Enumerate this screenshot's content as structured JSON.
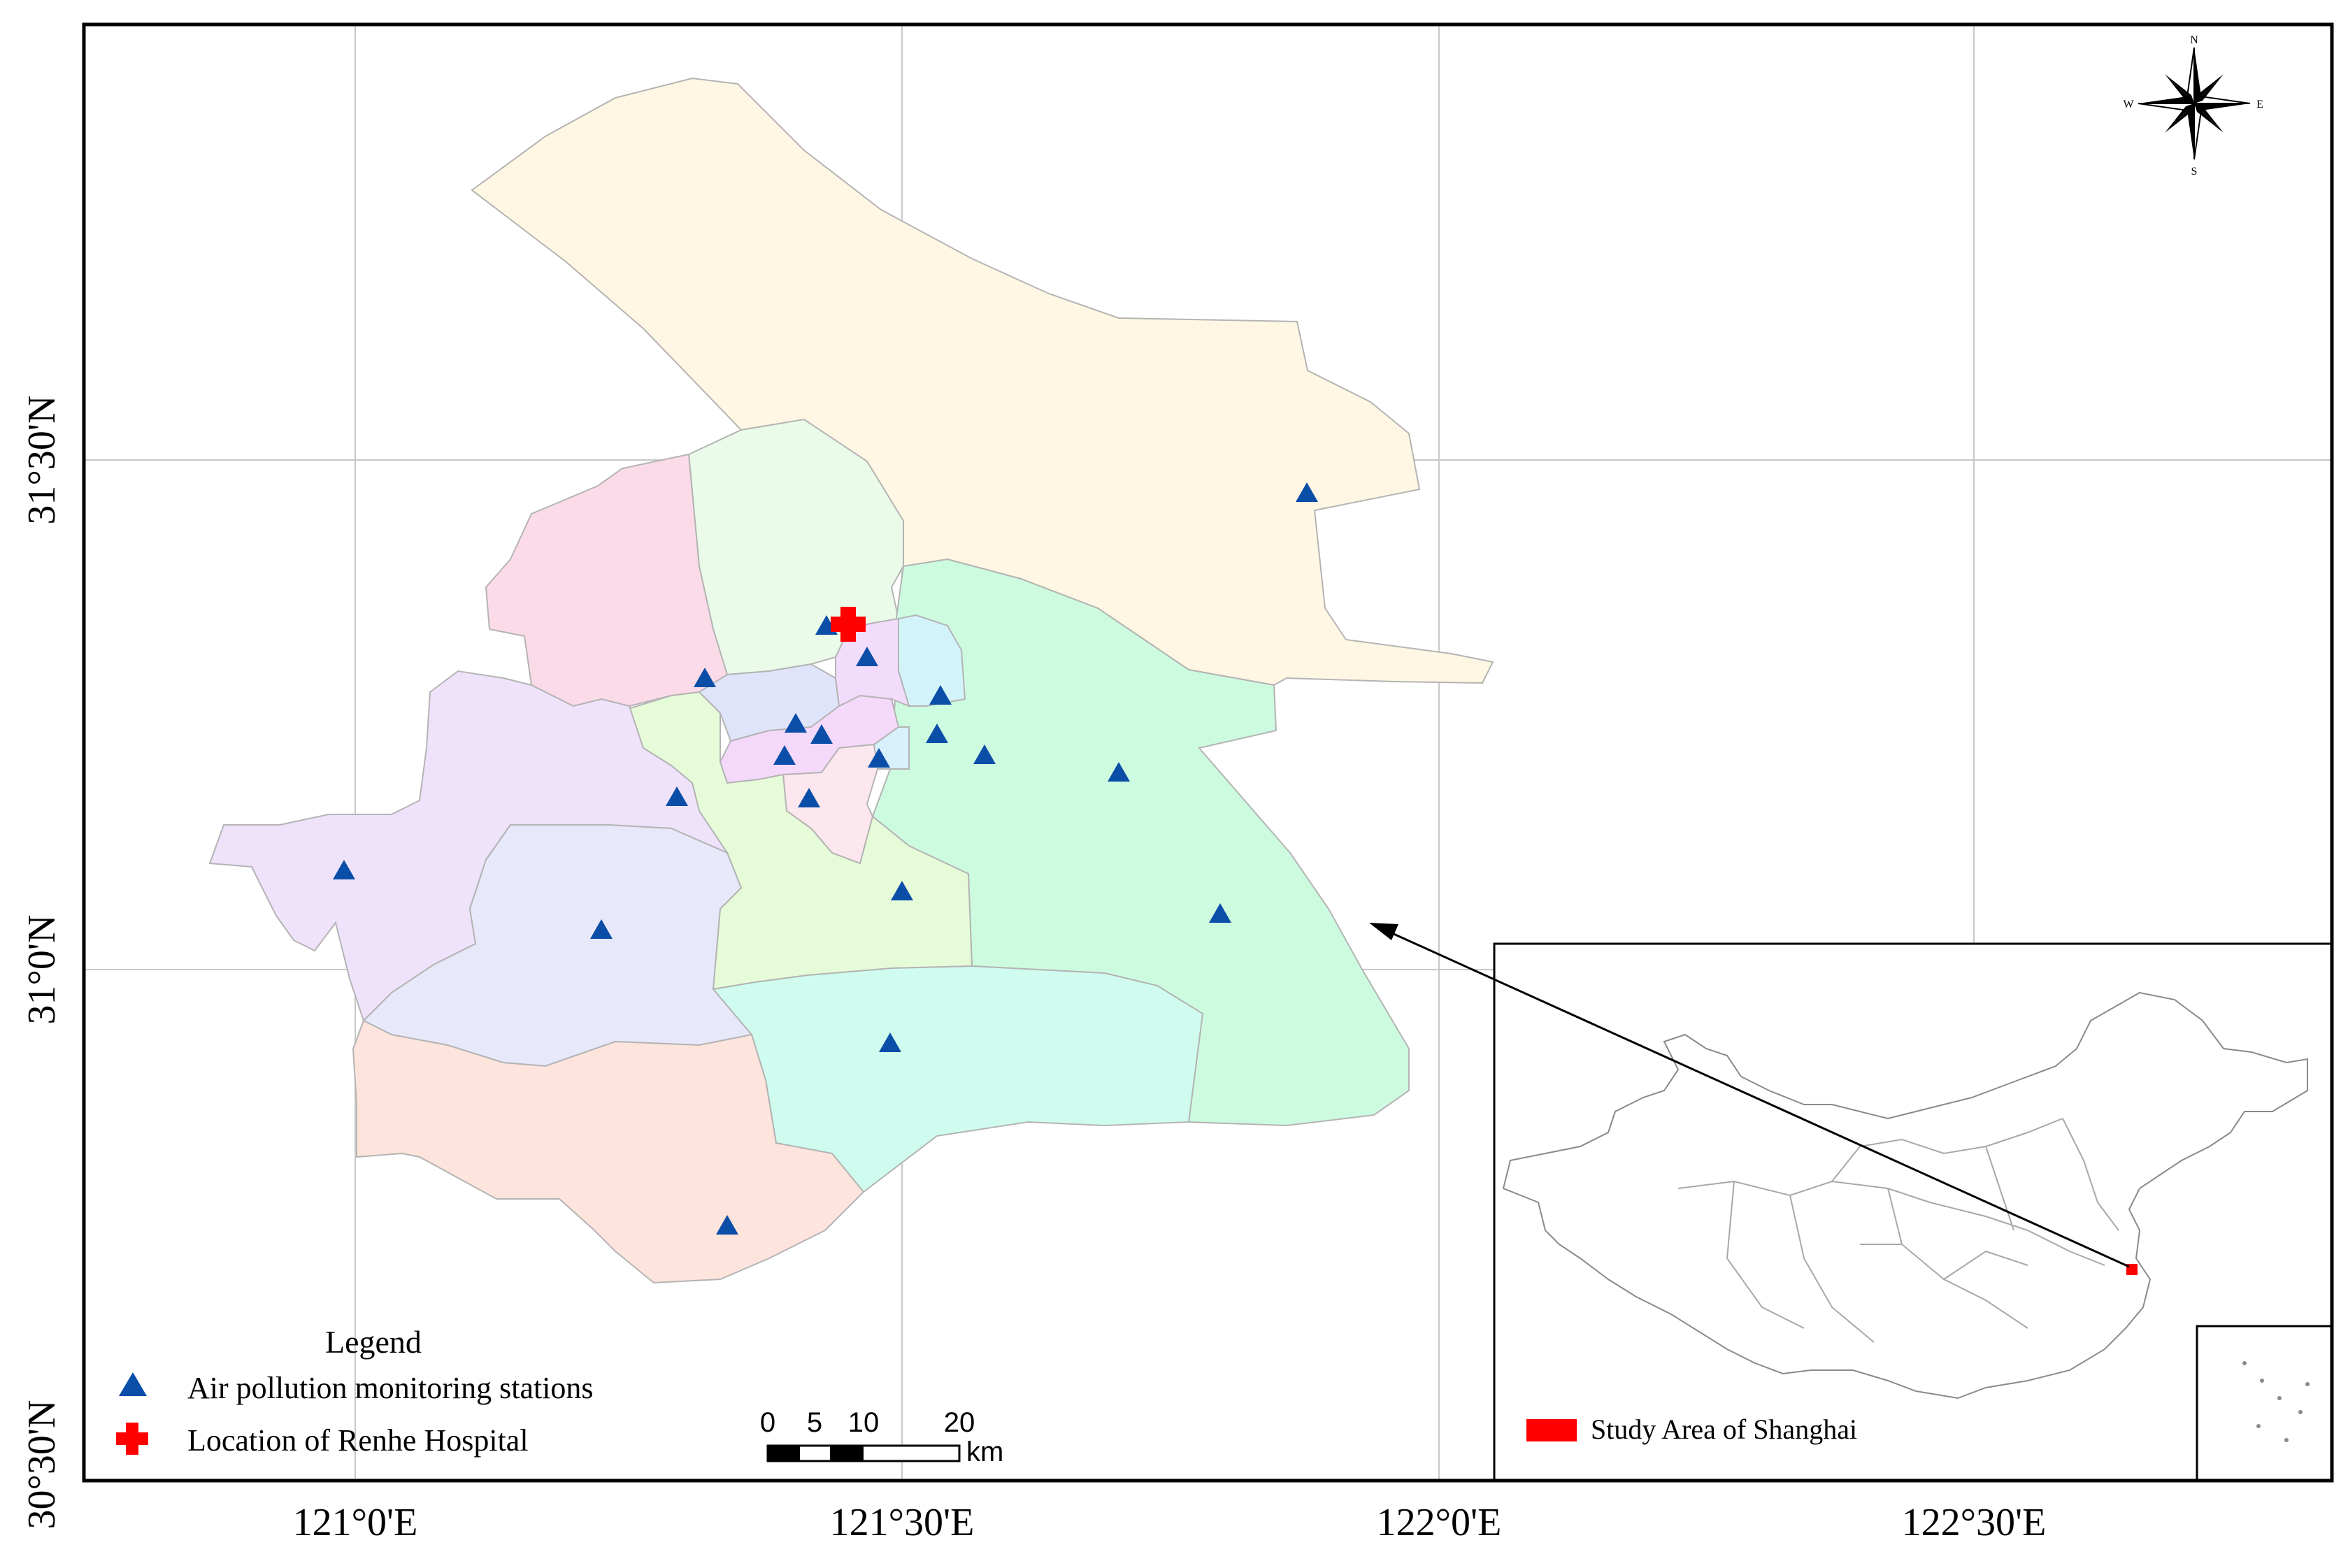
{
  "axes": {
    "x_labels": [
      "121°0'E",
      "121°30'E",
      "122°0'E",
      "122°30'E"
    ],
    "y_labels": [
      "31°30'N",
      "31°0'N",
      "30°30'N"
    ]
  },
  "legend": {
    "title": "Legend",
    "items": [
      {
        "symbol": "blue-triangle",
        "label": "Air pollution monitoring stations"
      },
      {
        "symbol": "red-cross",
        "label": "Location of Renhe Hospital"
      }
    ]
  },
  "scale_bar": {
    "ticks": [
      "0",
      "5",
      "10",
      "20"
    ],
    "unit": "km"
  },
  "north_arrow": {
    "n": "N",
    "s": "S",
    "e": "E",
    "w": "W"
  },
  "inset": {
    "legend_label": "Study Area of Shanghai"
  },
  "colors": {
    "station": "#0a4ea8",
    "hospital": "#ff0000",
    "study_area": "#ff0000",
    "chongming": "#fff7e3",
    "pudong": "#cdfbe0",
    "fengxian": "#cffcef",
    "jinshan": "#fde4dc",
    "songjiang": "#e8e8fb",
    "qingpu": "#efe2fb",
    "jiading": "#fcdbe9",
    "baoshan": "#eafbe9",
    "minhang": "#e6fcd9"
  }
}
